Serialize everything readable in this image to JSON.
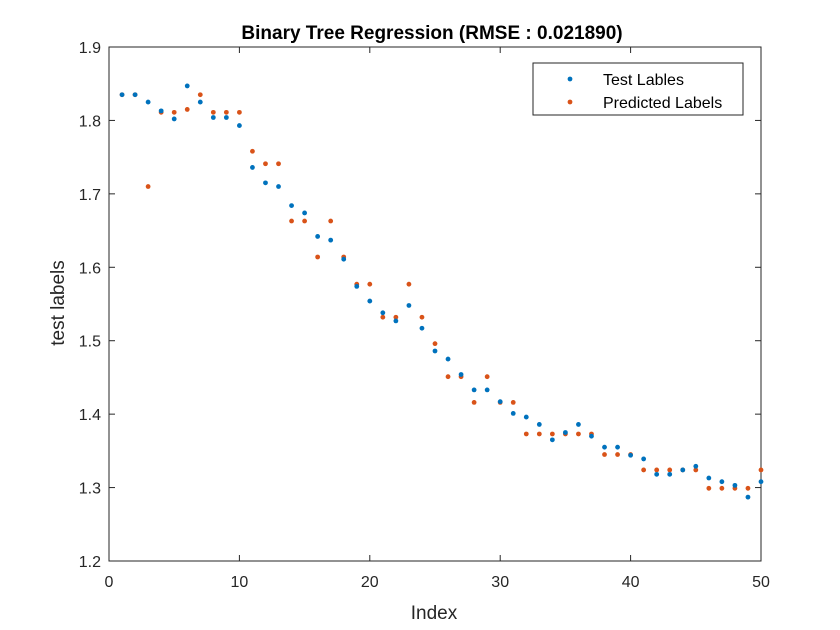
{
  "chart_data": {
    "type": "scatter",
    "title": "Binary Tree Regression (RMSE : 0.021890)",
    "xlabel": "Index",
    "ylabel": "test labels",
    "xlim": [
      0,
      50
    ],
    "ylim": [
      1.2,
      1.9
    ],
    "xticks": [
      "0",
      "10",
      "20",
      "30",
      "40",
      "50"
    ],
    "yticks": [
      "1.2",
      "1.3",
      "1.4",
      "1.5",
      "1.6",
      "1.7",
      "1.8",
      "1.9"
    ],
    "grid": false,
    "legend_position": "top-right",
    "x": [
      1,
      2,
      3,
      4,
      5,
      6,
      7,
      8,
      9,
      10,
      11,
      12,
      13,
      14,
      15,
      16,
      17,
      18,
      19,
      20,
      21,
      22,
      23,
      24,
      25,
      26,
      27,
      28,
      29,
      30,
      31,
      32,
      33,
      34,
      35,
      36,
      37,
      38,
      39,
      40,
      41,
      42,
      43,
      44,
      45,
      46,
      47,
      48,
      49,
      50
    ],
    "series": [
      {
        "name": "Test Lables",
        "color": "#0072BD",
        "values": [
          1.835,
          1.835,
          1.825,
          1.813,
          1.802,
          1.847,
          1.825,
          1.804,
          1.804,
          1.793,
          1.736,
          1.715,
          1.71,
          1.684,
          1.674,
          1.642,
          1.637,
          1.611,
          1.574,
          1.554,
          1.538,
          1.527,
          1.548,
          1.517,
          1.486,
          1.475,
          1.454,
          1.433,
          1.433,
          1.417,
          1.401,
          1.396,
          1.386,
          1.365,
          1.375,
          1.386,
          1.37,
          1.355,
          1.355,
          1.344,
          1.339,
          1.318,
          1.318,
          1.324,
          1.329,
          1.313,
          1.308,
          1.303,
          1.287,
          1.308
        ]
      },
      {
        "name": "Predicted Labels",
        "color": "#D95319",
        "values": [
          1.835,
          1.835,
          1.71,
          1.811,
          1.811,
          1.815,
          1.835,
          1.811,
          1.811,
          1.811,
          1.758,
          1.741,
          1.741,
          1.663,
          1.663,
          1.614,
          1.663,
          1.614,
          1.577,
          1.577,
          1.532,
          1.532,
          1.577,
          1.532,
          1.496,
          1.451,
          1.451,
          1.416,
          1.451,
          1.416,
          1.416,
          1.373,
          1.373,
          1.373,
          1.373,
          1.373,
          1.373,
          1.345,
          1.345,
          1.345,
          1.324,
          1.324,
          1.324,
          1.324,
          1.324,
          1.299,
          1.299,
          1.299,
          1.299,
          1.324
        ]
      }
    ]
  }
}
